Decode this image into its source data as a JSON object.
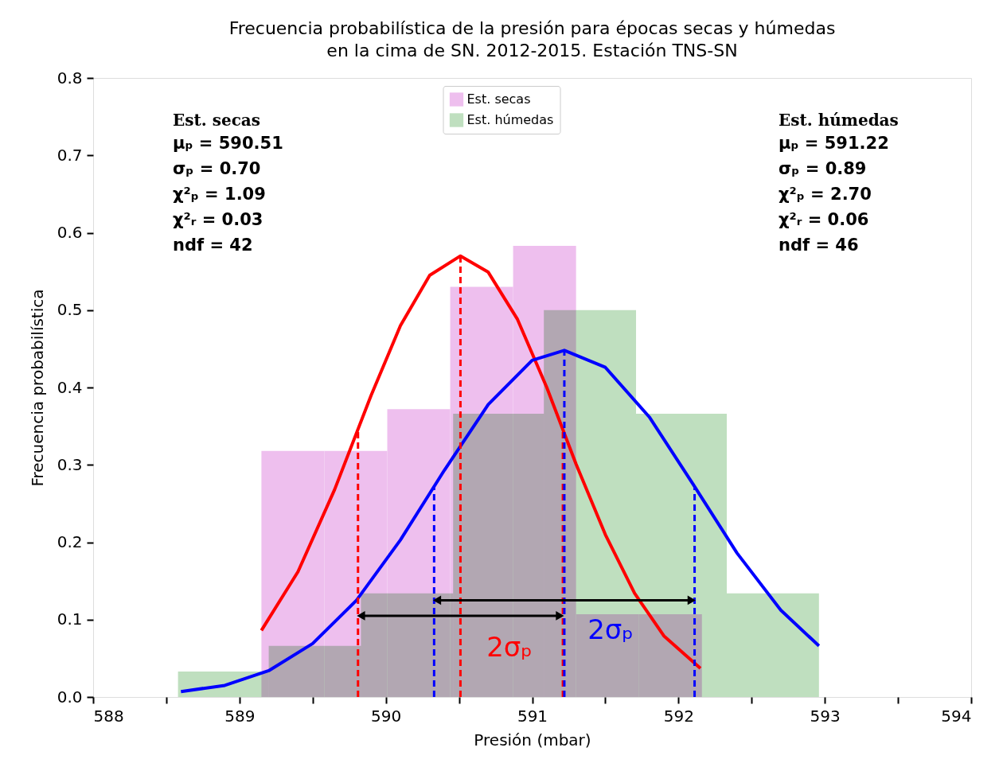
{
  "chart_data": {
    "type": "histogram",
    "title": "Frecuencia probabilística de la presión para épocas secas y húmedas\nen la cima de SN. 2012-2015. Estación TNS-SN",
    "xlabel": "Presión (mbar)",
    "ylabel": "Frecuencia probabilística",
    "xlim": [
      588,
      594
    ],
    "xticks": [
      588,
      {
        "value": 588.5,
        "label": null
      },
      589,
      {
        "value": 589.5,
        "label": null
      },
      590,
      {
        "value": 590.5,
        "label": null
      },
      591,
      {
        "value": 591.5,
        "label": null
      },
      592,
      {
        "value": 592.5,
        "label": null
      },
      593,
      {
        "value": 593.5,
        "label": null
      },
      594
    ],
    "ylim": [
      0,
      0.8
    ],
    "yticks": [
      {
        "value": 0,
        "label": "0.0"
      },
      0.1,
      0.2,
      0.3,
      0.4,
      0.5,
      0.6,
      0.7,
      0.8
    ],
    "grid": false,
    "legend": "top",
    "series": [
      {
        "name": "Est. secas",
        "color": "#eebfee",
        "bins": [
          589.15,
          589.58,
          590.01,
          590.44,
          590.87,
          591.3,
          591.73,
          592.16
        ],
        "values": [
          0.318,
          0.318,
          0.372,
          0.53,
          0.583,
          0.107,
          0.107
        ]
      },
      {
        "name": "Est. húmedas",
        "color": "#bfdfbf",
        "bins": [
          588.58,
          589.2,
          589.83,
          590.46,
          591.08,
          591.71,
          592.33,
          592.96
        ],
        "values": [
          0.033,
          0.066,
          0.134,
          0.366,
          0.5,
          0.366,
          0.134
        ]
      },
      {
        "type": "line",
        "color": "#ff0000",
        "line_style": "solid",
        "x": [
          589.15,
          589.4,
          589.65,
          589.9,
          590.1,
          590.3,
          590.51,
          590.7,
          590.9,
          591.1,
          591.3,
          591.5,
          591.7,
          591.9,
          592.15
        ],
        "values": [
          0.086,
          0.162,
          0.268,
          0.39,
          0.48,
          0.545,
          0.57,
          0.549,
          0.488,
          0.4,
          0.301,
          0.21,
          0.134,
          0.079,
          0.037
        ]
      },
      {
        "type": "line",
        "color": "#0000ff",
        "line_style": "solid",
        "x": [
          588.6,
          588.9,
          589.2,
          589.5,
          589.8,
          590.1,
          590.4,
          590.7,
          591.0,
          591.22,
          591.5,
          591.8,
          592.1,
          592.4,
          592.7,
          592.96
        ],
        "values": [
          0.007,
          0.015,
          0.034,
          0.069,
          0.125,
          0.203,
          0.293,
          0.378,
          0.435,
          0.448,
          0.426,
          0.362,
          0.275,
          0.186,
          0.112,
          0.066
        ]
      },
      {
        "type": "line",
        "color": "#ff0000",
        "line_style": "dashed",
        "x": [
          589.81,
          589.81
        ],
        "values": [
          0,
          0.345
        ]
      },
      {
        "type": "line",
        "color": "#ff0000",
        "line_style": "dashed",
        "x": [
          590.51,
          590.51
        ],
        "values": [
          0,
          0.57
        ]
      },
      {
        "type": "line",
        "color": "#ff0000",
        "line_style": "dashed",
        "x": [
          591.21,
          591.21
        ],
        "values": [
          0,
          0.345
        ]
      },
      {
        "type": "line",
        "color": "#0000ff",
        "line_style": "dashed",
        "x": [
          590.33,
          590.33
        ],
        "values": [
          0,
          0.272
        ]
      },
      {
        "type": "line",
        "color": "#0000ff",
        "line_style": "dashed",
        "x": [
          591.22,
          591.22
        ],
        "values": [
          0,
          0.448
        ]
      },
      {
        "type": "line",
        "color": "#0000ff",
        "line_style": "dashed",
        "x": [
          592.11,
          592.11
        ],
        "values": [
          0,
          0.272
        ]
      },
      {
        "type": "line",
        "color": "#000000",
        "line_style": "solid",
        "marker": "triangle",
        "x": [
          589.83,
          591.19
        ],
        "values": [
          0.105,
          0.105
        ]
      },
      {
        "type": "line",
        "color": "#000000",
        "line_style": "solid",
        "marker": "triangle",
        "x": [
          590.35,
          592.09
        ],
        "values": [
          0.125,
          0.125
        ]
      }
    ],
    "annotations": [
      "Est. secas\nμₚ = 590.51\nσₚ = 0.70\nχ²ₚ = 1.09\nχ²ᵣ = 0.03\nndf = 42",
      "Est. húmedas\nμₚ = 591.22\nσₚ = 0.89\nχ²ₚ = 2.70\nχ²ᵣ = 0.06\nndf = 46",
      "2σₚ",
      "2σₚ"
    ]
  }
}
